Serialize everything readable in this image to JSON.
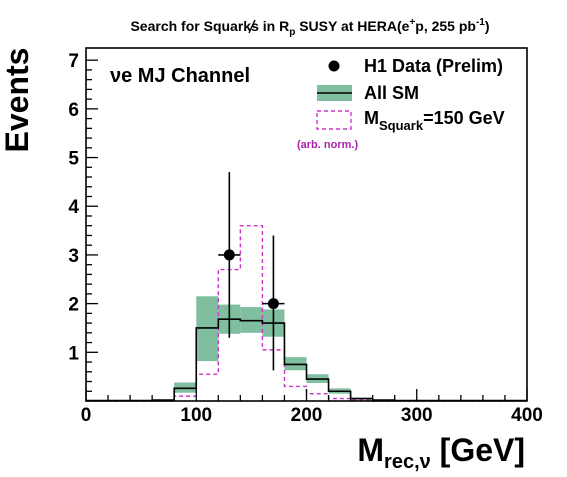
{
  "chart_data": {
    "type": "histogram",
    "title": {
      "pre": "Search for Squarks in ",
      "rp": "R",
      "rp_sub": "p",
      "mid": " SUSY at HERA(e",
      "sup1": "+",
      "mid2": "p, 255 pb",
      "sup2": "-1",
      "post": ")"
    },
    "channel_label": "νe MJ Channel",
    "ylabel": "Events",
    "xlabel": {
      "main": "M",
      "sub": "rec,ν",
      "unit": " [GeV]"
    },
    "xlim": [
      0,
      400
    ],
    "ylim": [
      0,
      7.25
    ],
    "xticks": [
      0,
      100,
      200,
      300,
      400
    ],
    "yticks": [
      1,
      2,
      3,
      4,
      5,
      6,
      7
    ],
    "bin_edges": [
      0,
      20,
      40,
      60,
      80,
      100,
      120,
      140,
      160,
      180,
      200,
      220,
      240,
      260,
      280,
      300,
      320,
      340,
      360,
      380,
      400
    ],
    "series": [
      {
        "name": "All SM",
        "kind": "mc_band",
        "values": [
          0.01,
          0.01,
          0.01,
          0.02,
          0.26,
          1.5,
          1.68,
          1.65,
          1.6,
          0.75,
          0.45,
          0.2,
          0.05,
          0.02,
          0.01,
          0.01,
          0.01,
          0.01,
          0.01,
          0.01
        ],
        "band_lo": [
          0.0,
          0.0,
          0.0,
          0.01,
          0.17,
          0.82,
          1.38,
          1.4,
          1.32,
          0.63,
          0.37,
          0.15,
          0.03,
          0.01,
          0.0,
          0.0,
          0.0,
          0.0,
          0.0,
          0.0
        ],
        "band_hi": [
          0.02,
          0.02,
          0.02,
          0.03,
          0.38,
          2.15,
          1.98,
          1.93,
          1.88,
          0.9,
          0.55,
          0.26,
          0.07,
          0.03,
          0.02,
          0.02,
          0.02,
          0.02,
          0.02,
          0.02
        ],
        "color": "#000000",
        "band_color": "#7fbf9f"
      },
      {
        "name": "M_Squark=150 GeV",
        "kind": "signal",
        "values": [
          0,
          0,
          0,
          0,
          0.1,
          0.55,
          2.7,
          3.6,
          1.05,
          0.3,
          0.15,
          0.05,
          0.02,
          0,
          0,
          0,
          0,
          0,
          0,
          0
        ],
        "color": "#cc33cc"
      },
      {
        "name": "H1 Data (Prelim)",
        "kind": "data",
        "points": [
          {
            "x": 130,
            "y": 3,
            "xerr": 10,
            "ylo": 1.3,
            "yhi": 4.7
          },
          {
            "x": 170,
            "y": 2,
            "xerr": 10,
            "ylo": 0.63,
            "yhi": 3.4
          }
        ],
        "color": "#000000"
      }
    ],
    "legend": {
      "placement": "top-right",
      "data_label": "H1 Data (Prelim)",
      "sm_label": "All SM",
      "sig_main": "M",
      "sig_sub": "Squark",
      "sig_rest": "=150 GeV",
      "sig_note": "(arb. norm.)"
    },
    "colors": {
      "sm_band": "#7fbf9f",
      "signal": "#cc33cc",
      "data": "#000000",
      "note": "#aa22aa"
    }
  }
}
